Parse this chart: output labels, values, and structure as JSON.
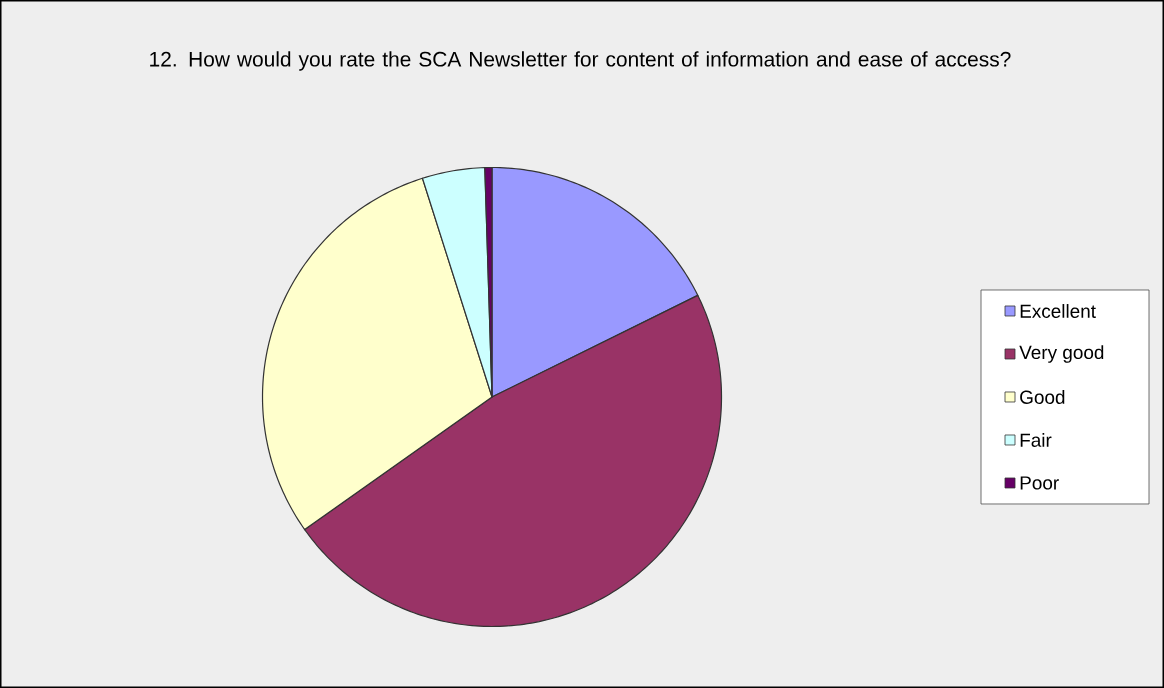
{
  "chart_data": {
    "type": "pie",
    "title": "12. How would you rate the SCA Newsletter for content of information and ease of access?",
    "categories": [
      "Excellent",
      "Very good",
      "Good",
      "Fair",
      "Poor"
    ],
    "values": [
      17.7,
      47.5,
      29.9,
      4.4,
      0.5
    ],
    "colors": [
      "#9999ff",
      "#993366",
      "#ffffcc",
      "#ccffff",
      "#660066"
    ],
    "legend": "right"
  }
}
